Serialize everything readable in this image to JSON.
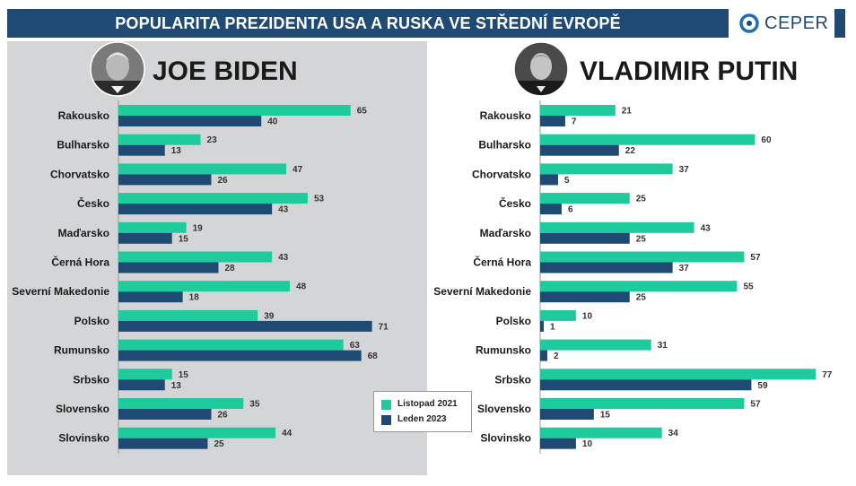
{
  "header": {
    "title": "POPULARITA PREZIDENTA USA A RUSKA VE STŘEDNÍ EVROPĚ",
    "logo_text": "CEPER"
  },
  "colors": {
    "series_2021": "#1ecb9c",
    "series_2023": "#1f4a73",
    "header_bg": "#1f4a73",
    "panel_bg": "#d4d5d7"
  },
  "legend": {
    "item_2021": "Listopad 2021",
    "item_2023": "Leden 2023"
  },
  "chart_data": [
    {
      "type": "bar",
      "title": "JOE BIDEN",
      "categories": [
        "Rakousko",
        "Bulharsko",
        "Chorvatsko",
        "Česko",
        "Maďarsko",
        "Černá Hora",
        "Severní Makedonie",
        "Polsko",
        "Rumunsko",
        "Srbsko",
        "Slovensko",
        "Slovinsko"
      ],
      "series": [
        {
          "name": "Listopad 2021",
          "values": [
            65,
            23,
            47,
            53,
            19,
            43,
            48,
            39,
            63,
            15,
            35,
            44
          ]
        },
        {
          "name": "Leden 2023",
          "values": [
            40,
            13,
            26,
            43,
            15,
            28,
            18,
            71,
            68,
            13,
            26,
            25
          ]
        }
      ],
      "grid": false,
      "legend_position": "bottom-right"
    },
    {
      "type": "bar",
      "title": "VLADIMIR PUTIN",
      "categories": [
        "Rakousko",
        "Bulharsko",
        "Chorvatsko",
        "Česko",
        "Maďarsko",
        "Černá Hora",
        "Severní Makedonie",
        "Polsko",
        "Rumunsko",
        "Srbsko",
        "Slovensko",
        "Slovinsko"
      ],
      "series": [
        {
          "name": "Listopad 2021",
          "values": [
            21,
            60,
            37,
            25,
            43,
            57,
            55,
            10,
            31,
            77,
            57,
            34
          ]
        },
        {
          "name": "Leden 2023",
          "values": [
            7,
            22,
            5,
            6,
            25,
            37,
            25,
            1,
            2,
            59,
            15,
            10
          ]
        }
      ],
      "grid": false
    }
  ]
}
